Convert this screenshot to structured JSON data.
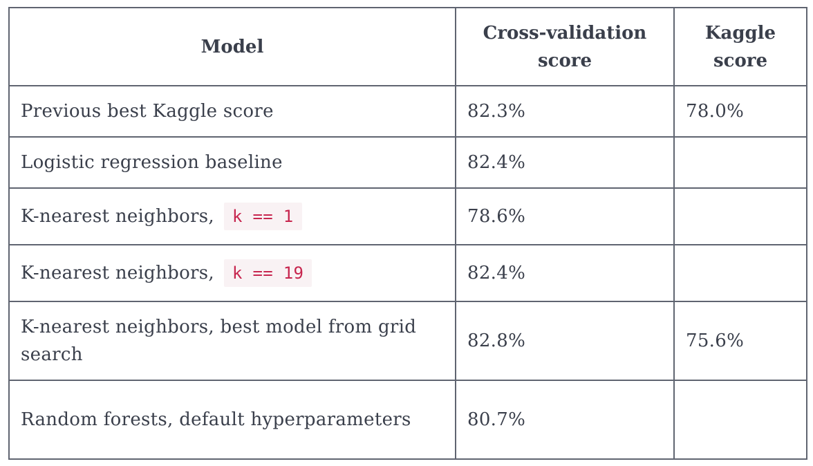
{
  "table": {
    "headers": {
      "model": "Model",
      "cv_score": "Cross-validation score",
      "kaggle_score": "Kaggle score"
    },
    "rows": [
      {
        "model": "Previous best Kaggle score",
        "code": "",
        "cv_score": "82.3%",
        "kaggle_score": "78.0%"
      },
      {
        "model": "Logistic regression baseline",
        "code": "",
        "cv_score": "82.4%",
        "kaggle_score": ""
      },
      {
        "model": "K-nearest neighbors,",
        "code": "k == 1",
        "cv_score": "78.6%",
        "kaggle_score": ""
      },
      {
        "model": "K-nearest neighbors,",
        "code": "k == 19",
        "cv_score": "82.4%",
        "kaggle_score": ""
      },
      {
        "model": "K-nearest neighbors, best model from grid search",
        "code": "",
        "cv_score": "82.8%",
        "kaggle_score": "75.6%"
      },
      {
        "model": "Random forests, default hyperparameters",
        "code": "",
        "cv_score": "80.7%",
        "kaggle_score": ""
      }
    ]
  },
  "colors": {
    "text": "#3a3f4b",
    "border": "#5f6470",
    "code_text": "#c7254e",
    "code_background": "#f9f2f4"
  }
}
